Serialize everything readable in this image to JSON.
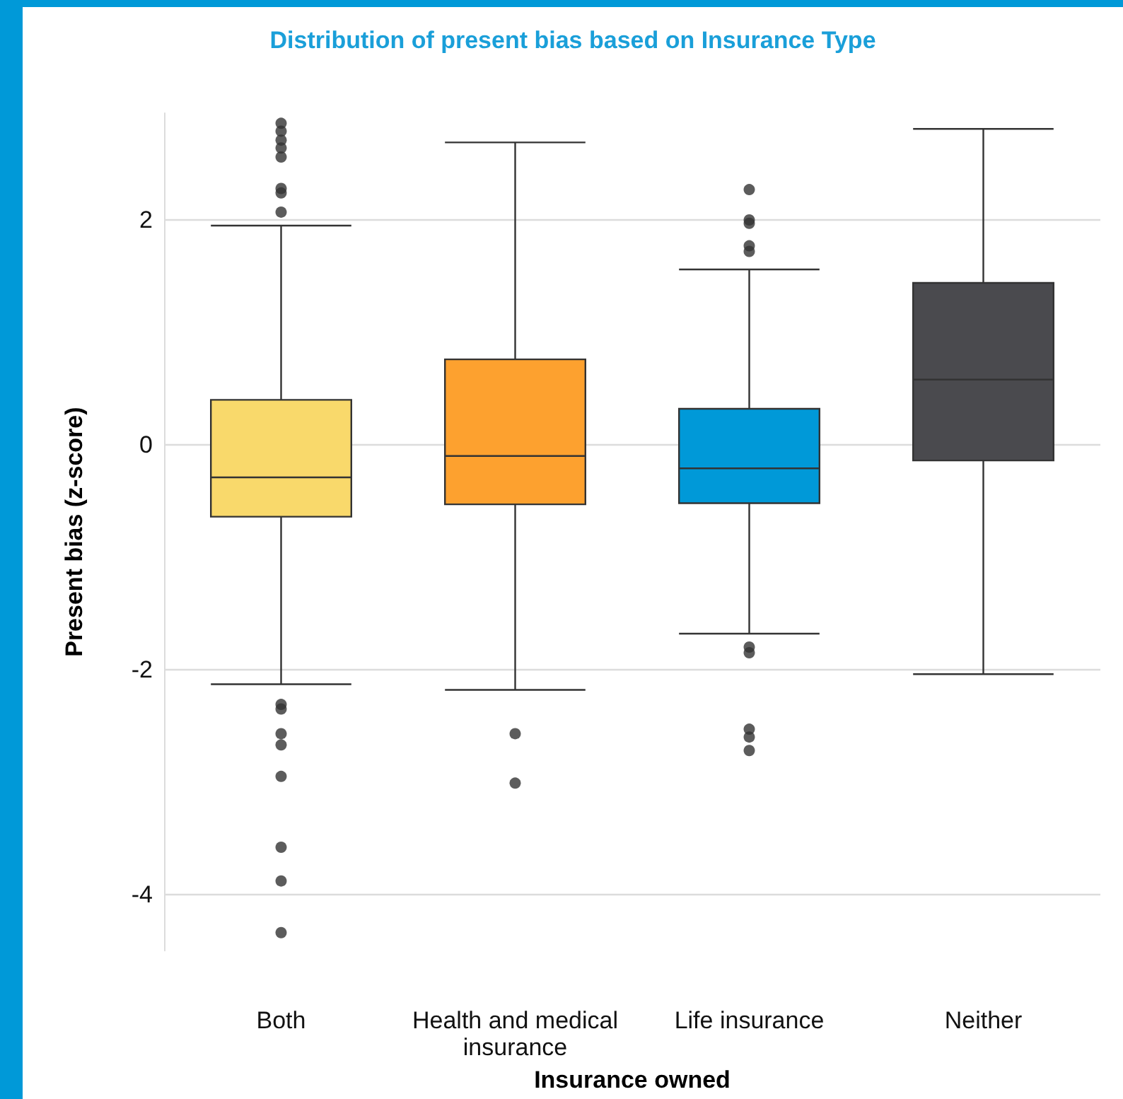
{
  "chart_data": {
    "type": "box",
    "title": "Distribution of present bias based on Insurance Type",
    "xlabel": "Insurance owned",
    "ylabel": "Present bias (z-score)",
    "categories": [
      "Both",
      "Health and medical\ninsurance",
      "Life insurance",
      "Neither"
    ],
    "colors": [
      "#f9d96b",
      "#fda12f",
      "#0099d8",
      "#4a4a4e"
    ],
    "boxes": [
      {
        "low": -2.13,
        "q1": -0.64,
        "median": -0.29,
        "q3": 0.4,
        "high": 1.95,
        "outliers": [
          2.86,
          2.79,
          2.71,
          2.64,
          2.56,
          2.28,
          2.24,
          2.07,
          -2.31,
          -2.35,
          -2.57,
          -2.67,
          -2.95,
          -3.58,
          -3.88,
          -4.34
        ]
      },
      {
        "low": -2.18,
        "q1": -0.53,
        "median": -0.1,
        "q3": 0.76,
        "high": 2.69,
        "outliers": [
          -2.57,
          -3.01
        ]
      },
      {
        "low": -1.68,
        "q1": -0.52,
        "median": -0.21,
        "q3": 0.32,
        "high": 1.56,
        "outliers": [
          2.27,
          2.0,
          1.97,
          1.77,
          1.72,
          -1.8,
          -1.85,
          -2.53,
          -2.6,
          -2.72
        ]
      },
      {
        "low": -2.04,
        "q1": -0.14,
        "median": 0.58,
        "q3": 1.44,
        "high": 2.81
      }
    ],
    "ylim": [
      -4.5,
      2.95
    ],
    "yticks": [
      -4,
      -2,
      0,
      2
    ],
    "grid": "y"
  }
}
